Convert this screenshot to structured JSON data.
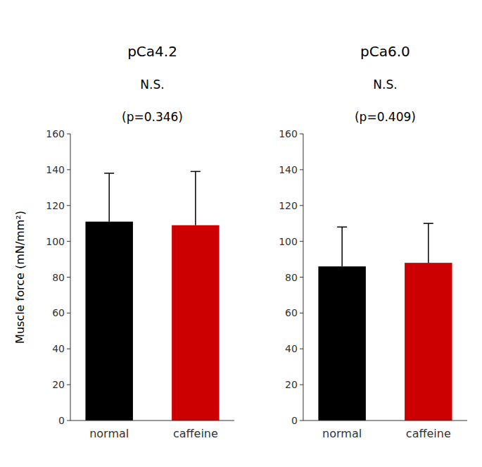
{
  "chart_data": [
    {
      "type": "bar",
      "title": "pCa4.2",
      "annotations": [
        "N.S.",
        "(p=0.346)"
      ],
      "categories": [
        "normal",
        "caffeine"
      ],
      "values": [
        111,
        109
      ],
      "errors": [
        27,
        30
      ],
      "colors": [
        "#000000",
        "#cc0000"
      ],
      "y_label": "Muscle force (mN/mm²)",
      "ylim": [
        0,
        160
      ],
      "yticks": [
        0,
        20,
        40,
        60,
        80,
        100,
        120,
        140,
        160
      ],
      "grid": false
    },
    {
      "type": "bar",
      "title": "pCa6.0",
      "annotations": [
        "N.S.",
        "(p=0.409)"
      ],
      "categories": [
        "normal",
        "caffeine"
      ],
      "values": [
        86,
        88
      ],
      "errors": [
        22,
        22
      ],
      "colors": [
        "#000000",
        "#cc0000"
      ],
      "ylim": [
        0,
        160
      ],
      "yticks": [
        0,
        20,
        40,
        60,
        80,
        100,
        120,
        140,
        160
      ],
      "grid": false
    }
  ]
}
